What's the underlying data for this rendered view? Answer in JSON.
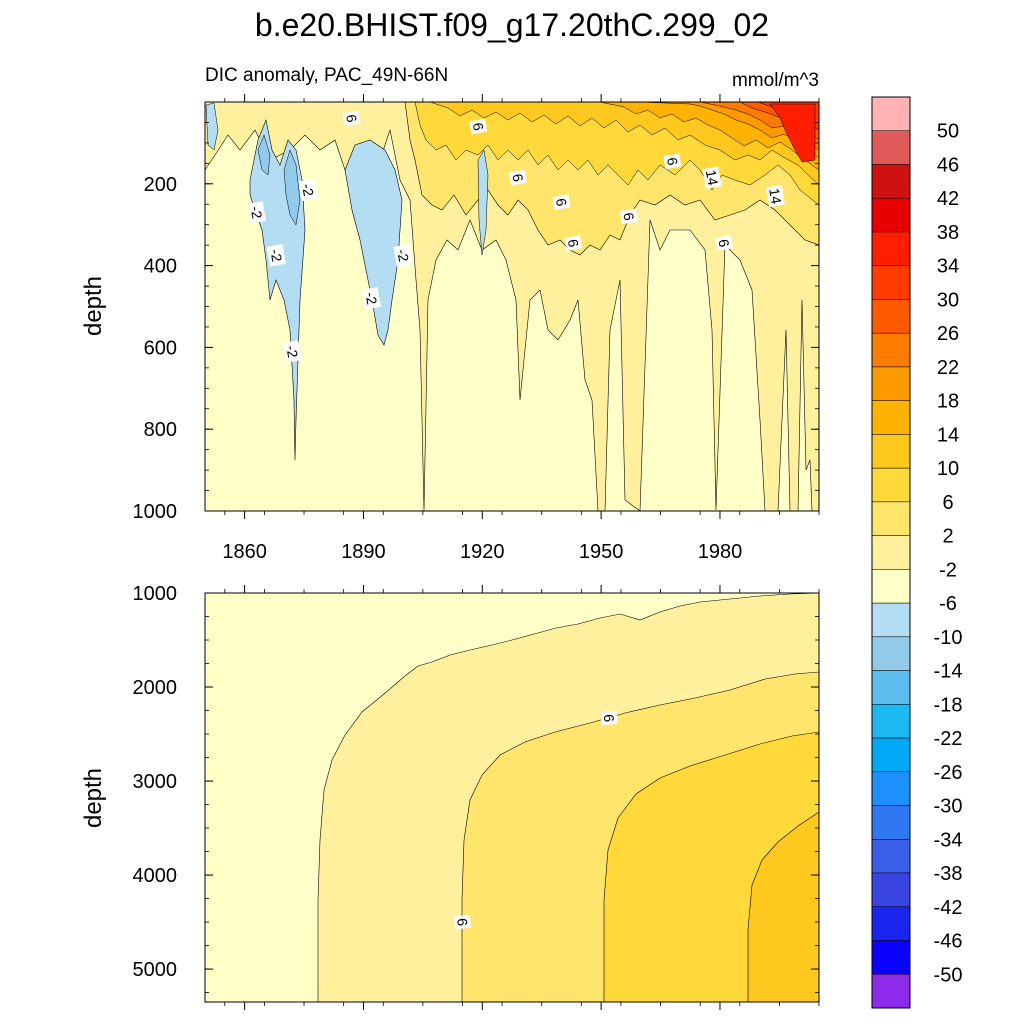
{
  "chart_data": {
    "type": "heatmap",
    "title": "b.e20.BHIST.f09_g17.20thC.299_02",
    "subtitle_left": "DIC anomaly, PAC_49N-66N",
    "subtitle_right": "mmol/m^3",
    "x_range": [
      1850,
      2005
    ],
    "x_ticks": [
      1860,
      1890,
      1920,
      1950,
      1980
    ],
    "x_tick_labels": [
      "1860",
      "1890",
      "1920",
      "1950",
      "1980"
    ],
    "panels": [
      {
        "id": "upper",
        "ylabel": "depth",
        "ylim": [
          0,
          1000
        ],
        "y_ticks": [
          200,
          400,
          600,
          800,
          1000
        ],
        "y_tick_labels": [
          "200",
          "400",
          "600",
          "800",
          "1000"
        ],
        "contour_labels": [
          {
            "text": "6",
            "x": 1887,
            "y": 40
          },
          {
            "text": "6",
            "x": 1919,
            "y": 60
          },
          {
            "text": "6",
            "x": 1929,
            "y": 185
          },
          {
            "text": "6",
            "x": 1940,
            "y": 245
          },
          {
            "text": "6",
            "x": 1957,
            "y": 280
          },
          {
            "text": "6",
            "x": 1943,
            "y": 345
          },
          {
            "text": "6",
            "x": 1968,
            "y": 145
          },
          {
            "text": "14",
            "x": 1978,
            "y": 185
          },
          {
            "text": "14",
            "x": 1994,
            "y": 230
          },
          {
            "text": "6",
            "x": 1981,
            "y": 345
          },
          {
            "text": "-2",
            "x": 1863,
            "y": 270
          },
          {
            "text": "-2",
            "x": 1876,
            "y": 215
          },
          {
            "text": "-2",
            "x": 1868,
            "y": 375
          },
          {
            "text": "-2",
            "x": 1900,
            "y": 375
          },
          {
            "text": "-2",
            "x": 1892,
            "y": 480
          },
          {
            "text": "-2",
            "x": 1872,
            "y": 610
          }
        ]
      },
      {
        "id": "lower",
        "ylabel": "depth",
        "ylim": [
          1000,
          5350
        ],
        "y_ticks": [
          1000,
          2000,
          3000,
          4000,
          5000
        ],
        "y_tick_labels": [
          "1000",
          "2000",
          "3000",
          "4000",
          "5000"
        ],
        "contour_labels": [
          {
            "text": "6",
            "x": 1952,
            "y": 2330
          },
          {
            "text": "6",
            "x": 1915,
            "y": 4500
          }
        ]
      }
    ],
    "colorbar": {
      "levels": [
        "50",
        "46",
        "42",
        "38",
        "34",
        "30",
        "26",
        "22",
        "18",
        "14",
        "10",
        "6",
        "2",
        "-2",
        "-6",
        "-10",
        "-14",
        "-18",
        "-22",
        "-26",
        "-30",
        "-34",
        "-38",
        "-42",
        "-46",
        "-50"
      ],
      "colors": [
        "#ffb3b3",
        "#e15a5a",
        "#cf1111",
        "#e80000",
        "#ff1e00",
        "#ff3c00",
        "#ff5a00",
        "#ff7c00",
        "#ff9900",
        "#ffb200",
        "#ffc81e",
        "#ffd93a",
        "#ffe56b",
        "#fff09d",
        "#ffffc8",
        "#b3ddf3",
        "#92cbea",
        "#5dbdee",
        "#1db9f3",
        "#00a9f6",
        "#1e90ff",
        "#2f78f2",
        "#3a5ee8",
        "#3a44e2",
        "#1a25f0",
        "#0a00ff",
        "#8e2bea"
      ]
    }
  }
}
